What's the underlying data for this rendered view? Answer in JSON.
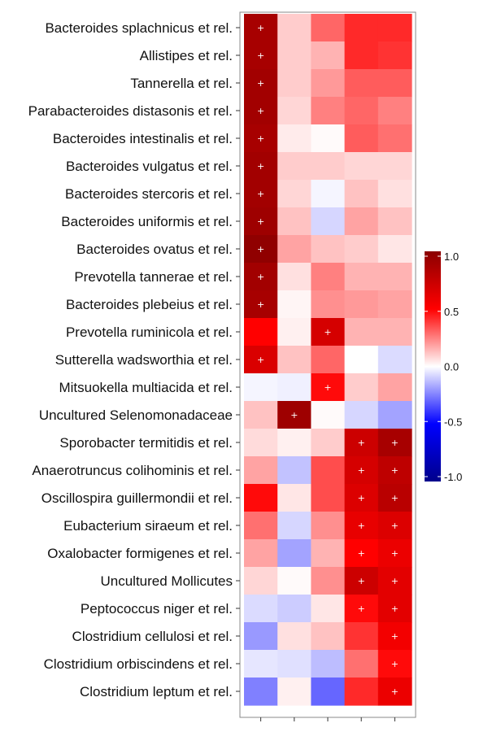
{
  "chart_data": {
    "type": "heatmap",
    "rows": [
      "Bacteroides splachnicus et rel.",
      "Allistipes et rel.",
      "Tannerella et rel.",
      "Parabacteroides distasonis et rel.",
      "Bacteroides intestinalis et rel.",
      "Bacteroides vulgatus et rel.",
      "Bacteroides stercoris et rel.",
      "Bacteroides uniformis et rel.",
      "Bacteroides ovatus et rel.",
      "Prevotella tannerae et rel.",
      "Bacteroides plebeius et rel.",
      "Prevotella ruminicola et rel.",
      "Sutterella wadsworthia et rel.",
      "Mitsuokella multiacida et rel.",
      "Uncultured Selenomonadaceae",
      "Sporobacter termitidis et rel.",
      "Anaerotruncus colihominis et rel.",
      "Oscillospira guillermondii et rel.",
      "Eubacterium siraeum et rel.",
      "Oxalobacter formigenes et rel.",
      "Uncultured Mollicutes",
      "Peptococcus niger et rel.",
      "Clostridium cellulosi et rel.",
      "Clostridium orbiscindens et rel.",
      "Clostridium leptum et rel."
    ],
    "columns": [
      "",
      "",
      "",
      "",
      ""
    ],
    "values": [
      [
        0.88,
        0.1,
        0.3,
        0.42,
        0.42
      ],
      [
        0.88,
        0.1,
        0.15,
        0.42,
        0.4
      ],
      [
        0.9,
        0.1,
        0.2,
        0.32,
        0.32
      ],
      [
        0.9,
        0.08,
        0.25,
        0.3,
        0.25
      ],
      [
        0.88,
        0.04,
        0.01,
        0.32,
        0.28
      ],
      [
        0.9,
        0.1,
        0.1,
        0.08,
        0.08
      ],
      [
        0.9,
        0.08,
        -0.02,
        0.12,
        0.06
      ],
      [
        0.92,
        0.12,
        -0.08,
        0.18,
        0.12
      ],
      [
        0.98,
        0.18,
        0.12,
        0.1,
        0.05
      ],
      [
        0.9,
        0.06,
        0.25,
        0.15,
        0.15
      ],
      [
        0.88,
        0.02,
        0.22,
        0.2,
        0.18
      ],
      [
        0.5,
        0.03,
        0.68,
        0.15,
        0.15
      ],
      [
        0.66,
        0.12,
        0.3,
        0.0,
        -0.07
      ],
      [
        -0.02,
        -0.03,
        0.48,
        0.1,
        0.18
      ],
      [
        0.12,
        0.92,
        0.01,
        -0.08,
        -0.18
      ],
      [
        0.07,
        0.03,
        0.1,
        0.72,
        0.88
      ],
      [
        0.18,
        -0.12,
        0.35,
        0.68,
        0.78
      ],
      [
        0.48,
        0.05,
        0.35,
        0.65,
        0.8
      ],
      [
        0.28,
        -0.08,
        0.22,
        0.6,
        0.65
      ],
      [
        0.18,
        -0.18,
        0.15,
        0.5,
        0.58
      ],
      [
        0.08,
        0.01,
        0.22,
        0.72,
        0.62
      ],
      [
        -0.07,
        -0.1,
        0.05,
        0.48,
        0.62
      ],
      [
        -0.2,
        0.06,
        0.12,
        0.4,
        0.55
      ],
      [
        -0.05,
        -0.06,
        -0.13,
        0.28,
        0.48
      ],
      [
        -0.25,
        0.03,
        -0.3,
        0.42,
        0.58
      ]
    ],
    "significant": [
      [
        true,
        false,
        false,
        false,
        false
      ],
      [
        true,
        false,
        false,
        false,
        false
      ],
      [
        true,
        false,
        false,
        false,
        false
      ],
      [
        true,
        false,
        false,
        false,
        false
      ],
      [
        true,
        false,
        false,
        false,
        false
      ],
      [
        true,
        false,
        false,
        false,
        false
      ],
      [
        true,
        false,
        false,
        false,
        false
      ],
      [
        true,
        false,
        false,
        false,
        false
      ],
      [
        true,
        false,
        false,
        false,
        false
      ],
      [
        true,
        false,
        false,
        false,
        false
      ],
      [
        true,
        false,
        false,
        false,
        false
      ],
      [
        false,
        false,
        true,
        false,
        false
      ],
      [
        true,
        false,
        false,
        false,
        false
      ],
      [
        false,
        false,
        true,
        false,
        false
      ],
      [
        false,
        true,
        false,
        false,
        false
      ],
      [
        false,
        false,
        false,
        true,
        true
      ],
      [
        false,
        false,
        false,
        true,
        true
      ],
      [
        false,
        false,
        false,
        true,
        true
      ],
      [
        false,
        false,
        false,
        true,
        true
      ],
      [
        false,
        false,
        false,
        true,
        true
      ],
      [
        false,
        false,
        false,
        true,
        true
      ],
      [
        false,
        false,
        false,
        true,
        true
      ],
      [
        false,
        false,
        false,
        false,
        true
      ],
      [
        false,
        false,
        false,
        false,
        true
      ],
      [
        false,
        false,
        false,
        false,
        true
      ]
    ],
    "significance_mark": "+",
    "scale": {
      "min": -1.0,
      "max": 1.0,
      "ticks": [
        1.0,
        0.5,
        0.0,
        -0.5,
        -1.0
      ],
      "tick_labels": [
        "1.0",
        "0.5",
        "0.0",
        "-0.5",
        "-1.0"
      ],
      "colors": {
        "low_end": "#00008b",
        "low": "#0000ff",
        "mid": "#ffffff",
        "high": "#ff0000",
        "high_end": "#8b0000"
      }
    },
    "legend_position": "right",
    "grid": false
  }
}
